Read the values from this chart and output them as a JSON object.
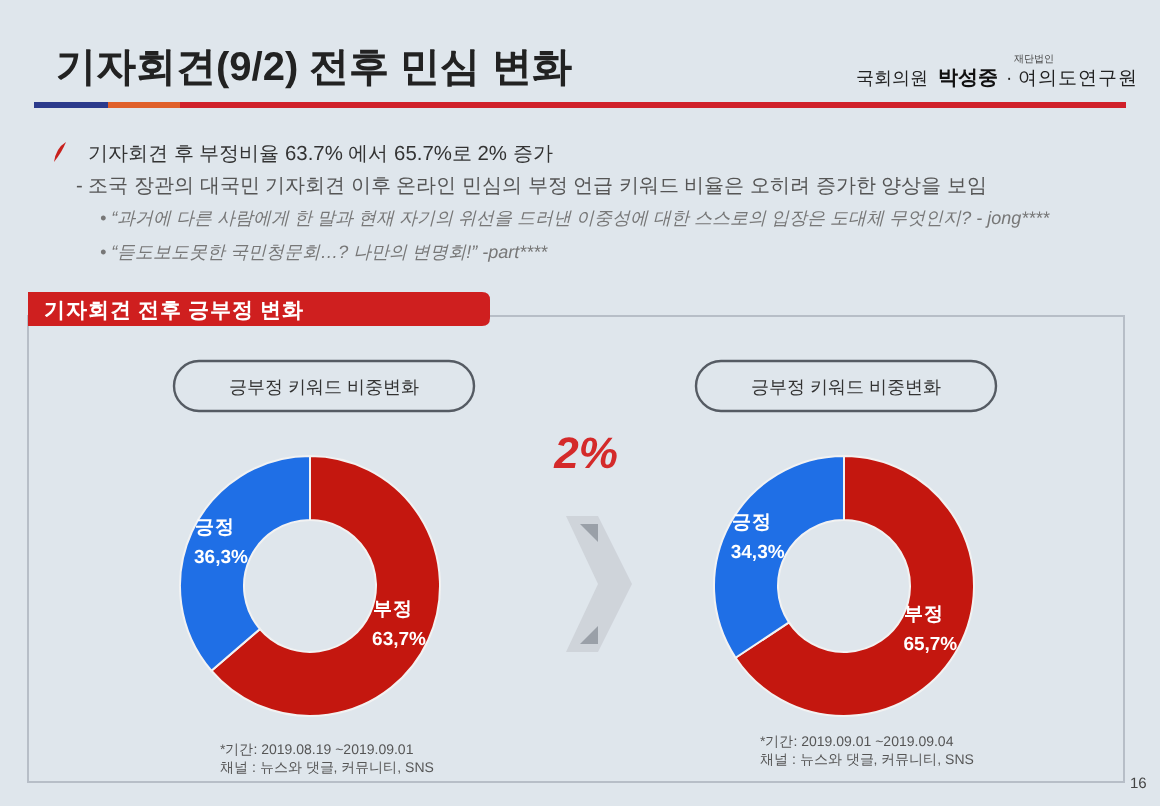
{
  "chart_data": [
    {
      "type": "other",
      "title": "기자회견(9/2) 전후 민심 변화",
      "subtitle": "기자회견 전후 긍부정 변화",
      "annotations": [
        "재단법인",
        "국회의원",
        "박성중",
        "· 여의도연구원",
        "기자회견 후 부정비율 63.7% 에서 65.7%로 2% 증가",
        "- 조국 장관의 대국민 기자회견 이후 온라인 민심의 부정 언급 키워드 비율은 오히려 증가한 양상을 보임",
        "• “과거에 다른 사람에게 한 말과 현재 자기의 위선을 드러낸 이중성에 대한 스스로의 입장은 도대체 무엇인지? - jong****",
        "• “듣도보도못한 국민청문회…? 나만의 변명회!” -part****",
        "2%",
        "16"
      ]
    },
    {
      "type": "donut",
      "title": "긍부정 키워드 비중변화",
      "categories": [
        "부정",
        "긍정"
      ],
      "values": [
        63.7,
        36.3
      ],
      "colors": [
        "#c4170f",
        "#1f6fe6"
      ],
      "value_labels": [
        "63,7%",
        "36,3%"
      ],
      "annotations": [
        "*기간: 2019.08.19 ~2019.09.01",
        "채널 : 뉴스와 댓글, 커뮤니티, SNS"
      ]
    },
    {
      "type": "donut",
      "title": "긍부정 키워드 비중변화",
      "categories": [
        "부정",
        "긍정"
      ],
      "values": [
        65.7,
        34.3
      ],
      "colors": [
        "#c4170f",
        "#1f6fe6"
      ],
      "value_labels": [
        "65,7%",
        "34,3%"
      ],
      "annotations": [
        "*기간: 2019.09.01 ~2019.09.04",
        "채널 : 뉴스와 댓글, 커뮤니티, SNS"
      ]
    }
  ]
}
